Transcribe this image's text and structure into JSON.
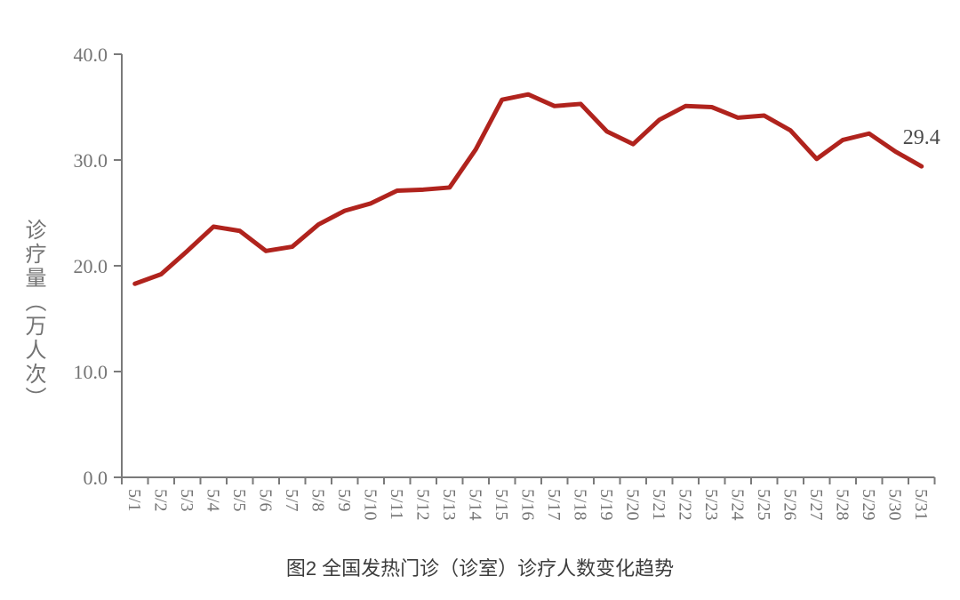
{
  "chart_data": {
    "type": "line",
    "title": "图2 全国发热门诊（诊室）诊疗人数变化趋势",
    "ylabel": "诊疗量（万人次）",
    "xlabel": "",
    "categories": [
      "5/1",
      "5/2",
      "5/3",
      "5/4",
      "5/5",
      "5/6",
      "5/7",
      "5/8",
      "5/9",
      "5/10",
      "5/11",
      "5/12",
      "5/13",
      "5/14",
      "5/15",
      "5/16",
      "5/17",
      "5/18",
      "5/19",
      "5/20",
      "5/21",
      "5/22",
      "5/23",
      "5/24",
      "5/25",
      "5/26",
      "5/27",
      "5/28",
      "5/29",
      "5/30",
      "5/31"
    ],
    "series": [
      {
        "name": "全国发热门诊（诊室）诊疗人数",
        "values": [
          18.3,
          19.2,
          21.4,
          23.7,
          23.3,
          21.4,
          21.8,
          23.9,
          25.2,
          25.9,
          27.1,
          27.2,
          27.4,
          31.0,
          35.7,
          36.2,
          35.1,
          35.3,
          32.7,
          31.5,
          33.8,
          35.1,
          35.0,
          34.0,
          34.2,
          32.8,
          30.1,
          31.9,
          32.5,
          30.8,
          29.4
        ]
      }
    ],
    "ylim": [
      0,
      40
    ],
    "yticks": [
      "0.0",
      "10.0",
      "20.0",
      "30.0",
      "40.0"
    ],
    "grid": "off",
    "legend": "none",
    "annotation": {
      "text": "29.4",
      "point_index": 30
    },
    "colors": {
      "line": "#b0231d",
      "axis": "#7a7a7a",
      "tick_label": "#737373",
      "annotation": "#4a4a4a",
      "caption": "#3c3c3c"
    }
  }
}
